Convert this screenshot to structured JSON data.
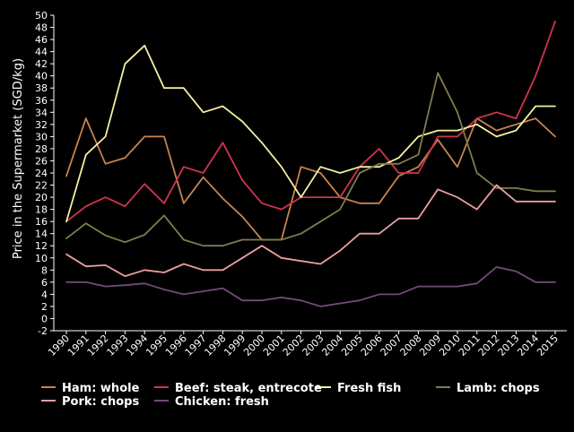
{
  "chart_data": {
    "type": "line",
    "ylabel": "Price in the Supermarket (SGD/kg)",
    "xlabel": "",
    "ylim": [
      -2,
      50
    ],
    "y_ticks": [
      -2,
      0,
      2,
      4,
      6,
      8,
      10,
      12,
      14,
      16,
      18,
      20,
      22,
      24,
      26,
      28,
      30,
      32,
      34,
      36,
      38,
      40,
      42,
      44,
      46,
      48,
      50
    ],
    "x": [
      "1990",
      "1991",
      "1992",
      "1993",
      "1994",
      "1995",
      "1996",
      "1997",
      "1998",
      "1999",
      "2000",
      "2001",
      "2002",
      "2003",
      "2004",
      "2005",
      "2006",
      "2007",
      "2008",
      "2009",
      "2010",
      "2011",
      "2012",
      "2013",
      "2014",
      "2015"
    ],
    "grid": false,
    "legend_position": "bottom",
    "series": [
      {
        "name": "Ham: whole",
        "color": "#c8834e",
        "values": [
          23.5,
          33,
          25.5,
          26.5,
          30,
          30,
          19,
          23.3,
          19.8,
          16.8,
          13,
          13,
          25,
          24,
          20,
          19,
          19,
          23.5,
          25,
          29.5,
          25,
          33,
          31,
          32,
          33,
          30
        ]
      },
      {
        "name": "Beef: steak, entrecote",
        "color": "#d0344f",
        "values": [
          16,
          18.5,
          20,
          18.5,
          22.2,
          19,
          25,
          24,
          29,
          22.8,
          19,
          18,
          20,
          20,
          20,
          25,
          28,
          24,
          24,
          30,
          30,
          33,
          34,
          33,
          40,
          49
        ]
      },
      {
        "name": "Fresh fish",
        "color": "#f4f0a0",
        "values": [
          16,
          27,
          30,
          42,
          45,
          38,
          38,
          34,
          35,
          32.5,
          29,
          25,
          20,
          25,
          24,
          25,
          25,
          26.5,
          30,
          31,
          31,
          32,
          30,
          31,
          35,
          35
        ]
      },
      {
        "name": "Lamb: chops",
        "color": "#7f7d4d",
        "values": [
          13.2,
          15.7,
          13.7,
          12.6,
          13.8,
          17,
          13,
          12,
          12,
          13,
          13,
          13,
          14,
          16,
          18,
          24,
          25.5,
          25.5,
          27,
          40.5,
          34,
          24,
          21.5,
          21.5,
          21,
          21
        ]
      },
      {
        "name": "Pork: chops",
        "color": "#ec9e9e",
        "values": [
          10.6,
          8.6,
          8.8,
          7,
          8,
          7.6,
          9,
          8,
          8,
          10,
          12,
          10,
          9.5,
          9,
          11.2,
          14,
          14,
          16.5,
          16.5,
          21.3,
          20,
          18,
          22,
          19.3,
          19.3,
          19.3
        ]
      },
      {
        "name": "Chicken: fresh",
        "color": "#74497a",
        "values": [
          6,
          6,
          5.3,
          5.5,
          5.8,
          4.8,
          4,
          4.5,
          5,
          3,
          3,
          3.5,
          3,
          2,
          2.5,
          3,
          4,
          4,
          5.3,
          5.3,
          5.3,
          5.8,
          8.5,
          7.8,
          6,
          6
        ]
      }
    ]
  }
}
